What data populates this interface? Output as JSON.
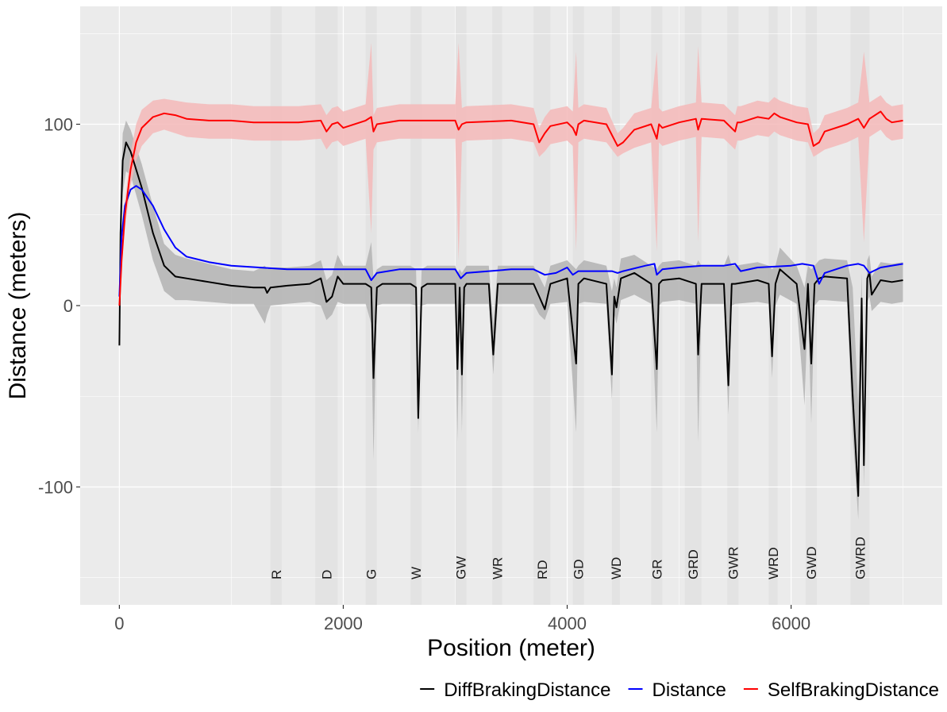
{
  "chart_data": {
    "type": "line",
    "title": "",
    "xlabel": "Position (meter)",
    "ylabel": "Distance (meters)",
    "xlim": [
      -350,
      7350
    ],
    "ylim": [
      -165,
      165
    ],
    "x_ticks": [
      0,
      2000,
      4000,
      6000
    ],
    "y_ticks": [
      -100,
      0,
      100
    ],
    "x_tick_labels": [
      "0",
      "2000",
      "4000",
      "6000"
    ],
    "y_tick_labels": [
      "-100",
      "0",
      "100"
    ],
    "grid": true,
    "legend_position": "bottom",
    "background": "#ebebeb",
    "zones": [
      {
        "label": "R",
        "start": 1350,
        "end": 1450
      },
      {
        "label": "D",
        "start": 1750,
        "end": 1950
      },
      {
        "label": "G",
        "start": 2200,
        "end": 2300
      },
      {
        "label": "W",
        "start": 2600,
        "end": 2700
      },
      {
        "label": "GW",
        "start": 3000,
        "end": 3100
      },
      {
        "label": "WR",
        "start": 3330,
        "end": 3420
      },
      {
        "label": "RD",
        "start": 3700,
        "end": 3850
      },
      {
        "label": "GD",
        "start": 4050,
        "end": 4150
      },
      {
        "label": "WD",
        "start": 4400,
        "end": 4470
      },
      {
        "label": "GR",
        "start": 4750,
        "end": 4850
      },
      {
        "label": "GRD",
        "start": 5050,
        "end": 5200
      },
      {
        "label": "GWR",
        "start": 5430,
        "end": 5530
      },
      {
        "label": "WRD",
        "start": 5800,
        "end": 5880
      },
      {
        "label": "GWD",
        "start": 6130,
        "end": 6230
      },
      {
        "label": "GWRD",
        "start": 6530,
        "end": 6700
      }
    ],
    "series": [
      {
        "name": "DiffBrakingDistance",
        "color": "#000000",
        "band_color": "#b3b3b3",
        "x": [
          0,
          10,
          30,
          60,
          100,
          200,
          300,
          400,
          500,
          600,
          800,
          1000,
          1200,
          1300,
          1320,
          1350,
          1500,
          1700,
          1800,
          1850,
          1900,
          1950,
          2000,
          2200,
          2250,
          2270,
          2300,
          2350,
          2600,
          2650,
          2670,
          2700,
          2750,
          3000,
          3020,
          3040,
          3060,
          3080,
          3100,
          3300,
          3340,
          3380,
          3500,
          3700,
          3750,
          3800,
          3850,
          4000,
          4080,
          4100,
          4150,
          4350,
          4400,
          4420,
          4440,
          4480,
          4600,
          4750,
          4800,
          4820,
          4850,
          5000,
          5150,
          5170,
          5200,
          5400,
          5440,
          5470,
          5500,
          5700,
          5800,
          5830,
          5860,
          5900,
          6050,
          6120,
          6150,
          6180,
          6210,
          6250,
          6300,
          6500,
          6550,
          6600,
          6630,
          6650,
          6680,
          6700,
          6720,
          6800,
          6900,
          7000
        ],
        "y": [
          -22,
          40,
          80,
          90,
          85,
          65,
          40,
          22,
          16,
          15,
          13,
          11,
          10,
          10,
          7,
          10,
          11,
          12,
          15,
          2,
          5,
          16,
          12,
          12,
          10,
          -40,
          10,
          12,
          12,
          10,
          -62,
          10,
          12,
          12,
          -35,
          10,
          -38,
          10,
          12,
          12,
          -27,
          12,
          12,
          12,
          5,
          -2,
          12,
          15,
          -32,
          12,
          15,
          12,
          -38,
          5,
          -1,
          15,
          18,
          12,
          -35,
          12,
          14,
          15,
          12,
          -27,
          12,
          12,
          -44,
          12,
          12,
          14,
          12,
          -28,
          12,
          20,
          12,
          -24,
          12,
          -32,
          12,
          15,
          16,
          15,
          -50,
          -105,
          4,
          -88,
          15,
          18,
          6,
          14,
          13,
          14
        ],
        "band_low": [
          -22,
          20,
          62,
          74,
          72,
          50,
          25,
          8,
          3,
          3,
          2,
          1,
          1,
          -10,
          -5,
          0,
          1,
          2,
          0,
          -8,
          -5,
          2,
          1,
          1,
          -10,
          -85,
          0,
          1,
          1,
          0,
          -70,
          0,
          1,
          1,
          -75,
          0,
          -70,
          0,
          1,
          1,
          -38,
          1,
          1,
          1,
          -5,
          -8,
          1,
          2,
          -70,
          1,
          2,
          1,
          -52,
          -5,
          -10,
          3,
          6,
          1,
          -70,
          0,
          2,
          3,
          1,
          -75,
          1,
          1,
          -60,
          0,
          1,
          2,
          1,
          -40,
          0,
          6,
          1,
          -55,
          0,
          -65,
          0,
          3,
          3,
          2,
          -70,
          -118,
          -20,
          -100,
          2,
          5,
          -3,
          2,
          1,
          2
        ],
        "band_high": [
          -22,
          55,
          95,
          102,
          97,
          78,
          55,
          34,
          28,
          26,
          23,
          20,
          19,
          22,
          20,
          21,
          21,
          22,
          25,
          14,
          17,
          28,
          22,
          22,
          35,
          15,
          20,
          22,
          22,
          20,
          -35,
          20,
          22,
          22,
          18,
          20,
          18,
          20,
          22,
          22,
          -10,
          22,
          22,
          22,
          16,
          10,
          22,
          25,
          20,
          22,
          25,
          22,
          8,
          15,
          10,
          26,
          28,
          22,
          20,
          22,
          24,
          25,
          22,
          25,
          22,
          22,
          28,
          22,
          22,
          24,
          22,
          20,
          22,
          32,
          22,
          10,
          22,
          20,
          22,
          25,
          26,
          25,
          10,
          -55,
          18,
          -60,
          25,
          28,
          16,
          24,
          23,
          24
        ]
      },
      {
        "name": "Distance",
        "color": "#0000ff",
        "x": [
          0,
          20,
          50,
          100,
          150,
          200,
          300,
          400,
          500,
          600,
          800,
          1000,
          1500,
          2000,
          2200,
          2250,
          2300,
          2500,
          3000,
          3050,
          3100,
          3500,
          3700,
          3800,
          3900,
          4000,
          4050,
          4100,
          4400,
          4450,
          4500,
          4700,
          4780,
          4800,
          4850,
          5000,
          5200,
          5400,
          5500,
          5550,
          5700,
          6000,
          6100,
          6200,
          6250,
          6300,
          6500,
          6600,
          6650,
          6700,
          6800,
          7000
        ],
        "y": [
          5,
          38,
          55,
          64,
          66,
          64,
          55,
          42,
          32,
          27,
          24,
          22,
          20,
          20,
          20,
          14,
          18,
          20,
          20,
          15,
          18,
          20,
          20,
          17,
          18,
          21,
          17,
          19,
          19,
          18,
          19,
          22,
          23,
          17,
          20,
          21,
          22,
          22,
          23,
          19,
          21,
          22,
          23,
          22,
          12,
          18,
          22,
          23,
          22,
          18,
          21,
          23
        ]
      },
      {
        "name": "SelfBrakingDistance",
        "color": "#ff0000",
        "band_color": "#f4b9b8",
        "x": [
          0,
          20,
          50,
          100,
          150,
          200,
          300,
          400,
          500,
          600,
          800,
          1000,
          1200,
          1400,
          1600,
          1800,
          1850,
          1900,
          1950,
          2000,
          2200,
          2250,
          2270,
          2300,
          2500,
          3000,
          3030,
          3060,
          3100,
          3500,
          3700,
          3750,
          3800,
          3850,
          4000,
          4050,
          4080,
          4100,
          4150,
          4350,
          4450,
          4500,
          4600,
          4750,
          4800,
          4820,
          4850,
          5000,
          5150,
          5170,
          5200,
          5400,
          5500,
          5520,
          5550,
          5700,
          5800,
          5850,
          5900,
          6050,
          6150,
          6200,
          6250,
          6300,
          6500,
          6600,
          6650,
          6700,
          6800,
          6850,
          6900,
          7000
        ],
        "y": [
          0,
          25,
          50,
          75,
          90,
          98,
          104,
          106,
          105,
          103,
          102,
          102,
          101,
          101,
          101,
          102,
          96,
          100,
          101,
          98,
          102,
          104,
          96,
          100,
          102,
          102,
          97,
          100,
          101,
          102,
          100,
          90,
          95,
          99,
          101,
          98,
          94,
          100,
          102,
          100,
          88,
          90,
          97,
          100,
          92,
          100,
          98,
          101,
          103,
          97,
          103,
          102,
          96,
          101,
          101,
          104,
          103,
          106,
          104,
          101,
          100,
          88,
          90,
          96,
          100,
          103,
          98,
          103,
          107,
          103,
          101,
          102
        ],
        "band_low": [
          0,
          20,
          43,
          66,
          80,
          88,
          95,
          97,
          95,
          93,
          92,
          92,
          91,
          91,
          91,
          92,
          86,
          90,
          91,
          88,
          92,
          40,
          86,
          90,
          92,
          92,
          25,
          90,
          91,
          92,
          90,
          82,
          85,
          89,
          91,
          88,
          30,
          90,
          92,
          90,
          82,
          84,
          87,
          90,
          30,
          90,
          88,
          91,
          93,
          35,
          93,
          92,
          86,
          91,
          91,
          94,
          93,
          96,
          94,
          91,
          90,
          82,
          84,
          86,
          90,
          93,
          35,
          93,
          97,
          93,
          91,
          92
        ],
        "band_high": [
          0,
          30,
          57,
          84,
          100,
          108,
          113,
          114,
          113,
          112,
          111,
          111,
          110,
          110,
          110,
          111,
          105,
          109,
          110,
          107,
          111,
          145,
          105,
          109,
          111,
          111,
          145,
          109,
          110,
          111,
          109,
          98,
          104,
          108,
          110,
          107,
          140,
          109,
          111,
          109,
          95,
          98,
          106,
          109,
          140,
          109,
          107,
          110,
          112,
          143,
          112,
          111,
          105,
          110,
          110,
          113,
          112,
          115,
          113,
          110,
          109,
          95,
          98,
          105,
          109,
          112,
          140,
          112,
          116,
          112,
          110,
          111
        ]
      }
    ]
  }
}
